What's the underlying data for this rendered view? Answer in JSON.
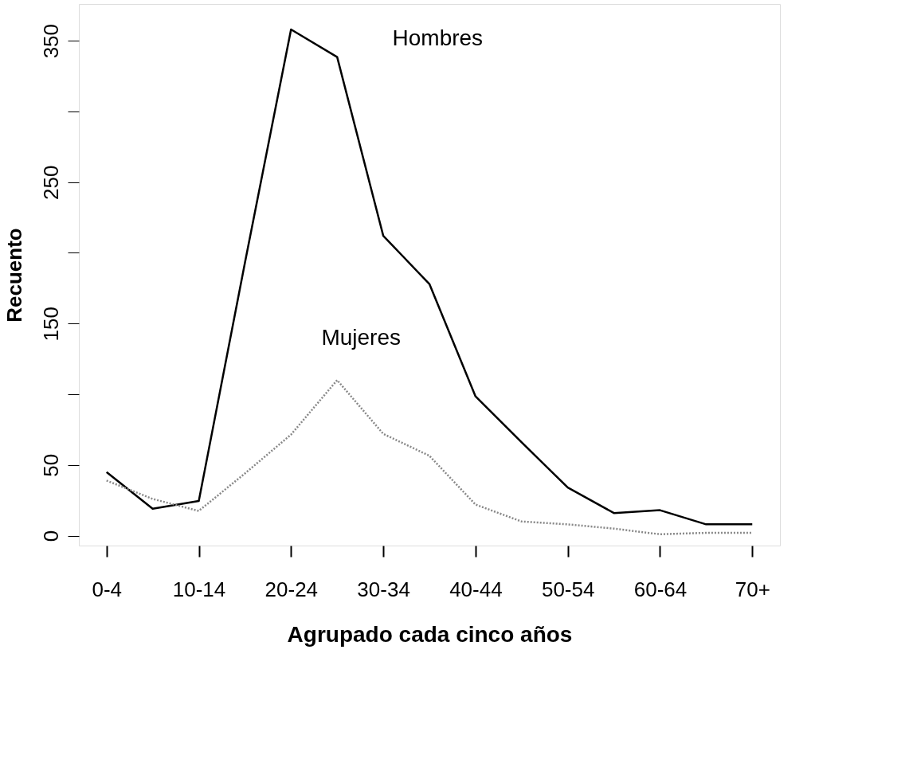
{
  "chart_data": {
    "type": "line",
    "xlabel": "Agrupado cada cinco años",
    "ylabel": "Recuento",
    "categories": [
      "0-4",
      null,
      "10-14",
      null,
      "20-24",
      null,
      "30-34",
      null,
      "40-44",
      null,
      "50-54",
      null,
      "60-64",
      null,
      "70+"
    ],
    "series": [
      {
        "name": "Hombres",
        "color": "#000000",
        "line_style": "solid",
        "values": [
          45,
          19,
          24.5,
          193,
          358,
          338.5,
          212,
          178,
          98.5,
          66,
          34,
          16,
          18,
          8,
          8
        ]
      },
      {
        "name": "Mujeres",
        "color": "#888888",
        "line_style": "dotted",
        "values": [
          39,
          26,
          17.5,
          44,
          71.5,
          110,
          72,
          56.5,
          22,
          10,
          8,
          5,
          1,
          2,
          2
        ]
      }
    ],
    "ylim": [
      -7,
      376
    ],
    "yticks": [
      0,
      50,
      {
        "value": 100,
        "label": null
      },
      150,
      {
        "value": 200,
        "label": null
      },
      250,
      {
        "value": 300,
        "label": null
      },
      350
    ],
    "grid": false,
    "legend": false,
    "marker": "none"
  }
}
